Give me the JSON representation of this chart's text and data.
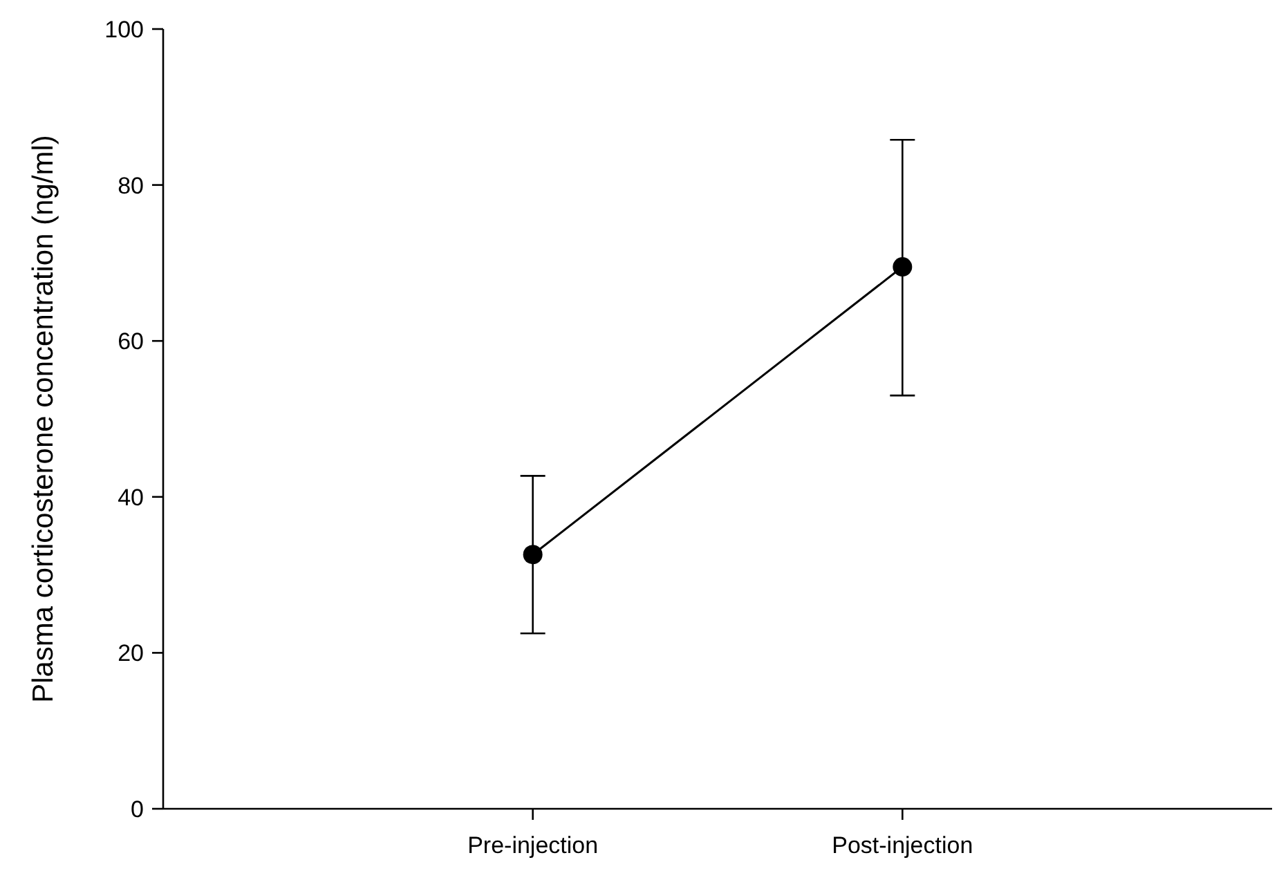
{
  "chart_data": {
    "type": "line",
    "ylabel": "Plasma corticosterone concentration (ng/ml)",
    "categories": [
      "Pre-injection",
      "Post-injection"
    ],
    "series": [
      {
        "color": "#000000",
        "values": [
          32.6,
          69.5
        ],
        "errors": [
          [
            22.5,
            42.7
          ],
          [
            53.0,
            85.8
          ]
        ]
      }
    ],
    "ylim": [
      0,
      100
    ],
    "yticks": [
      0,
      20,
      40,
      60,
      80,
      100
    ],
    "grid": false,
    "marker": "circle",
    "line_style": "solid"
  }
}
